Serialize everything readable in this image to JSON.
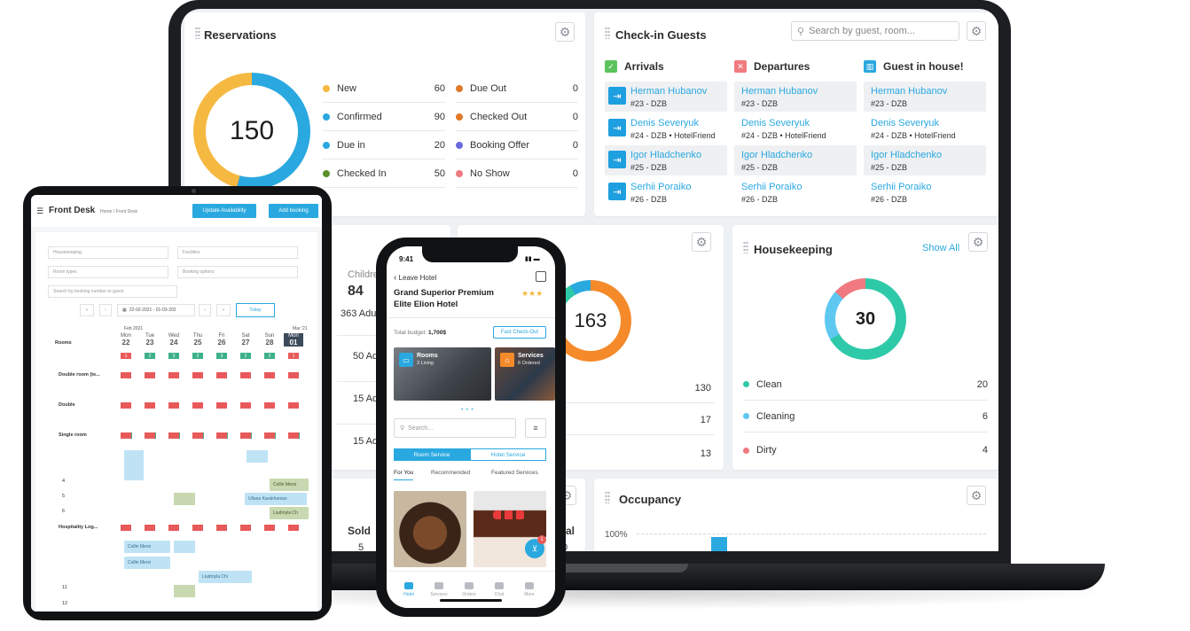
{
  "reservations": {
    "title": "Reservations",
    "total": "150",
    "left_items": [
      {
        "label": "New",
        "value": "60",
        "color": "#f5b942"
      },
      {
        "label": "Confirmed",
        "value": "90",
        "color": "#2aa8e0"
      },
      {
        "label": "Due in",
        "value": "20",
        "color": "#2aa8e0"
      },
      {
        "label": "Checked In",
        "value": "50",
        "color": "#5a8f2a"
      }
    ],
    "right_items": [
      {
        "label": "Due Out",
        "value": "0",
        "color": "#e07a2a"
      },
      {
        "label": "Checked Out",
        "value": "0",
        "color": "#e07a2a"
      },
      {
        "label": "Booking Offer",
        "value": "0",
        "color": "#6a6ae0"
      },
      {
        "label": "No Show",
        "value": "0",
        "color": "#f07a80"
      }
    ]
  },
  "checkin": {
    "title": "Check-in Guests",
    "search_placeholder": "Search by guest, room...",
    "columns": [
      {
        "title": "Arrivals",
        "icon": "calendar-check-icon",
        "color": "#5cc35c"
      },
      {
        "title": "Departures",
        "icon": "calendar-out-icon",
        "color": "#f07a80"
      },
      {
        "title": "Guest in house!",
        "icon": "building-icon",
        "color": "#2aa8e0"
      }
    ],
    "guests": [
      {
        "name": "Herman Hubanov",
        "room": "#23 - DZB"
      },
      {
        "name": "Denis Severyuk",
        "room": "#24 - DZB • HotelFriend"
      },
      {
        "name": "Igor Hladchenko",
        "room": "#25 - DZB"
      },
      {
        "name": "Serhii Poraiko",
        "room": "#26 - DZB"
      }
    ]
  },
  "middle": {
    "children_label": "Childre",
    "children_value": "84",
    "adults_total": "363 Adul",
    "adult_rows": [
      "50 Adu",
      "15 Adu",
      "15 Adu"
    ],
    "mid_title_partial": "e",
    "donut_value": "163",
    "values": [
      "130",
      "17",
      "13"
    ],
    "sold_label": "Sold",
    "sold_value": "5",
    "total_partial": "tal",
    "total_value": "0"
  },
  "housekeeping": {
    "title": "Housekeeping",
    "show_all": "Show All",
    "total": "30",
    "items": [
      {
        "label": "Clean",
        "value": "20",
        "color": "#2ec9a8"
      },
      {
        "label": "Cleaning",
        "value": "6",
        "color": "#5ec8f0"
      },
      {
        "label": "Dirty",
        "value": "4",
        "color": "#f07a80"
      }
    ]
  },
  "occupancy": {
    "title": "Occupancy",
    "y_label": "100%"
  },
  "tablet": {
    "title": "Front Desk",
    "breadcrumb": "Home / Front Desk",
    "update_btn": "Update Availability",
    "add_btn": "Add booking",
    "filters": [
      "Housekeeping",
      "Facilities",
      "Room types",
      "Booking options"
    ],
    "search_placeholder": "Search by booking number or guest",
    "date_range": "22-02-2021 - 01-03-202",
    "today_btn": "Today",
    "month_feb": "Feb 2021",
    "month_mar": "Mar '21",
    "rooms_label": "Rooms",
    "days": [
      {
        "dow": "Mon",
        "d": "22"
      },
      {
        "dow": "Tue",
        "d": "23"
      },
      {
        "dow": "Wed",
        "d": "24"
      },
      {
        "dow": "Thu",
        "d": "25"
      },
      {
        "dow": "Fri",
        "d": "26"
      },
      {
        "dow": "Sat",
        "d": "27"
      },
      {
        "dow": "Sun",
        "d": "28"
      },
      {
        "dow": "Mon",
        "d": "01"
      }
    ],
    "top_counts": [
      "1",
      "2",
      "3",
      "2",
      "3",
      "2",
      "2",
      "1"
    ],
    "row_labels": [
      "Double room (te...",
      "Double",
      "Single room",
      "4",
      "5",
      "6",
      "Hospitality Log...",
      "11",
      "12"
    ],
    "bookings": [
      "Collin Mersi",
      "Ullana Karakhanian",
      "Liudmyla Ch",
      "Collin Mersi",
      "Collin Mersi",
      "Liudmyla Chi"
    ]
  },
  "phone": {
    "time": "9:41",
    "back_label": "Leave Hotel",
    "hotel_name": "Grand Superior Premium Elite Elion Hotel",
    "stars": "★★★",
    "budget_label": "Total budget:",
    "budget_value": "1,700$",
    "checkout_btn": "Fast Check-Out",
    "tile_rooms_title": "Rooms",
    "tile_rooms_sub": "3 Living",
    "tile_services_title": "Services",
    "tile_services_sub": "6 Ordered",
    "search_placeholder": "Search...",
    "seg_left": "Room Service",
    "seg_right": "Hotel Service",
    "tabs": [
      "For You",
      "Recommended",
      "Featured Services"
    ],
    "cart_count": "1",
    "nav": [
      "Hotel",
      "Services",
      "Orders",
      "Chat",
      "More"
    ]
  }
}
